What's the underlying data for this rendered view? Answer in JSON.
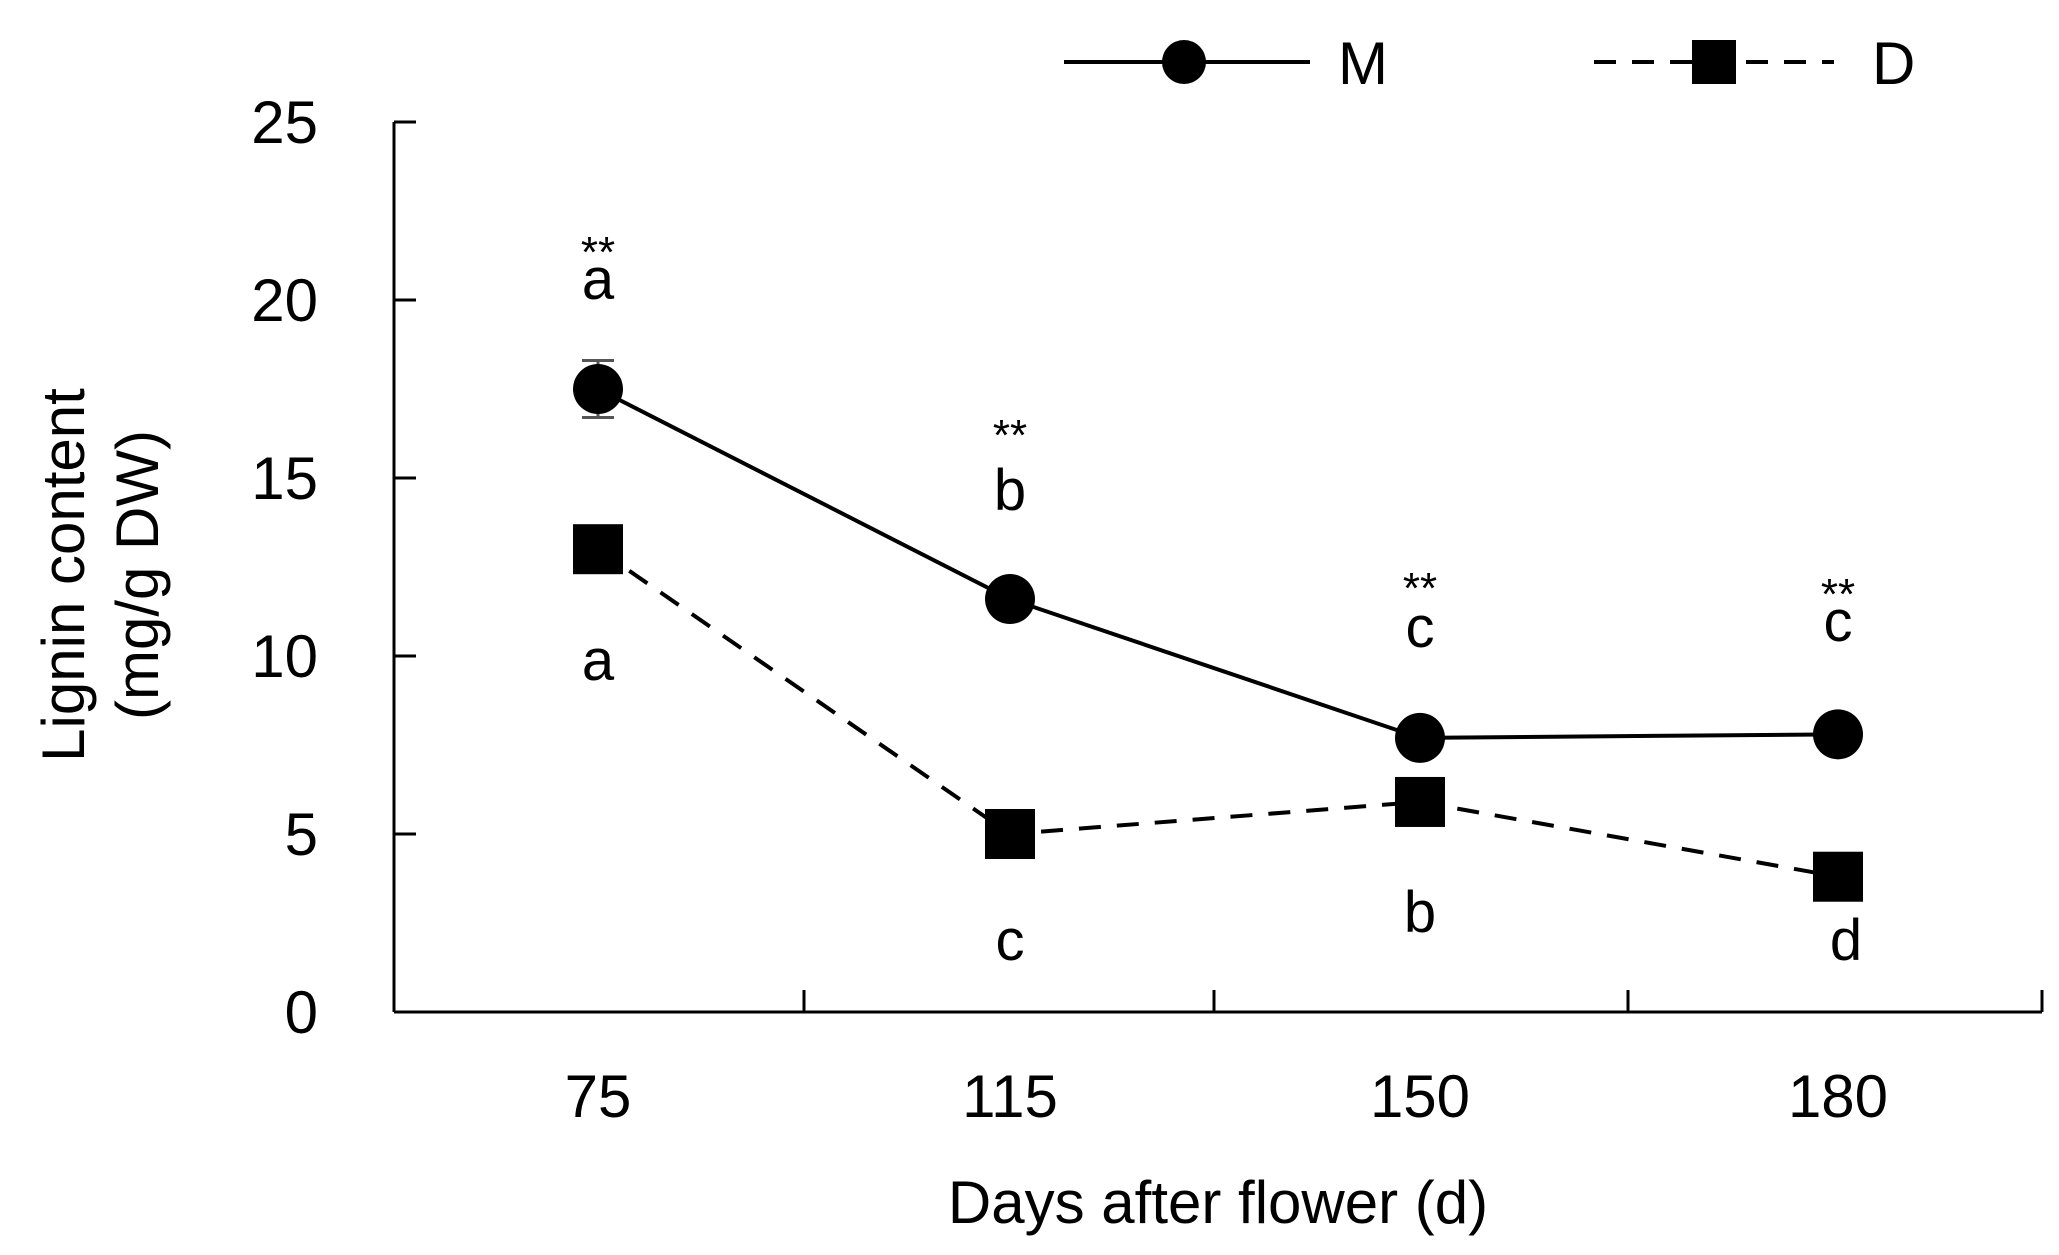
{
  "chart_data": {
    "type": "line",
    "title": "",
    "xlabel": "Days after flower (d)",
    "ylabel_line1": "Lignin content",
    "ylabel_line2": "(mg/g DW)",
    "categories": [
      "75",
      "115",
      "150",
      "180"
    ],
    "ylim": [
      0,
      25
    ],
    "yticks": [
      0,
      5,
      10,
      15,
      20,
      25
    ],
    "ytick_labels": [
      "0",
      "5",
      "10",
      "15",
      "20",
      "25"
    ],
    "grid": false,
    "legend_position": "top-right",
    "series": [
      {
        "name": "M",
        "line_style": "solid",
        "marker": "circle",
        "values": [
          17.5,
          11.6,
          7.7,
          7.8
        ],
        "errors": [
          0.8,
          0.4,
          0.2,
          0.2
        ],
        "letters": [
          "a",
          "b",
          "c",
          "c"
        ],
        "significance": [
          "**",
          "**",
          "**",
          "**"
        ]
      },
      {
        "name": "D",
        "line_style": "dashed",
        "marker": "square",
        "values": [
          13.0,
          5.0,
          5.9,
          3.8
        ],
        "errors": [
          0.2,
          0.2,
          0.2,
          0.2
        ],
        "letters": [
          "a",
          "c",
          "b",
          "d"
        ]
      }
    ]
  }
}
